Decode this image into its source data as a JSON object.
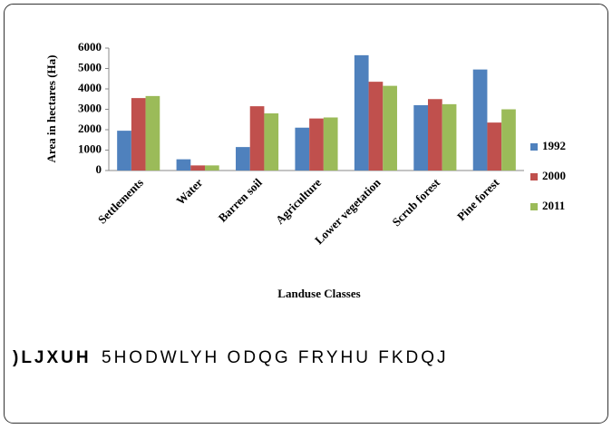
{
  "chart_data": {
    "type": "bar",
    "y_label": "Area in hectares (Ha)",
    "x_label": "Landuse Classes",
    "categories": [
      "Settlements",
      "Water",
      "Barren soil",
      "Agriculture",
      "Lower vegetation",
      "Scrub forest",
      "Pine forest"
    ],
    "series": [
      {
        "name": "1992",
        "color": "#4f81bd",
        "values": [
          1950,
          550,
          1150,
          2100,
          5650,
          3200,
          4950
        ]
      },
      {
        "name": "2000",
        "color": "#c0504d",
        "values": [
          3550,
          250,
          3150,
          2550,
          4350,
          3500,
          2350
        ]
      },
      {
        "name": "2011",
        "color": "#9bbb59",
        "values": [
          3650,
          250,
          2800,
          2600,
          4150,
          3250,
          3000
        ]
      }
    ],
    "ylim": [
      0,
      6000
    ],
    "yticks": [
      0,
      1000,
      2000,
      3000,
      4000,
      5000,
      6000
    ],
    "grid": false,
    "legend": "right"
  },
  "caption": {
    "label": ")LJXUH",
    "text": "5HODWLYH ODQG FRYHU FKDQJ"
  }
}
